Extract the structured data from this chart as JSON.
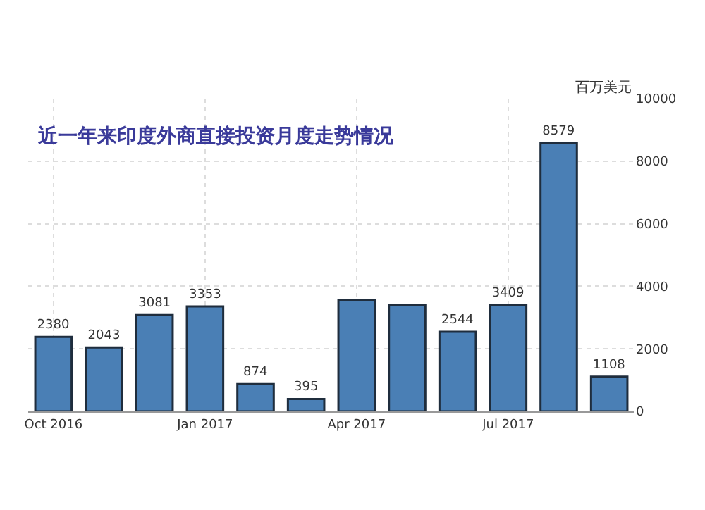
{
  "chart_data": {
    "type": "bar",
    "title": "近一年来印度外商直接投资月度走势情况",
    "ylabel": "百万美元",
    "categories": [
      "Oct 2016",
      null,
      null,
      "Jan 2017",
      null,
      null,
      "Apr 2017",
      null,
      null,
      "Jul 2017",
      null,
      null
    ],
    "values": [
      2380,
      2043,
      3081,
      3353,
      874,
      395,
      3550,
      3400,
      2544,
      3409,
      8579,
      1108
    ],
    "value_labels": [
      "2380",
      "2043",
      "3081",
      "3353",
      "874",
      "395",
      null,
      null,
      "2544",
      "3409",
      "8579",
      "1108"
    ],
    "color": "#4a7fb5",
    "ylim": [
      0,
      10000
    ],
    "yticks": [
      0,
      2000,
      4000,
      6000,
      8000,
      10000
    ],
    "grid": true,
    "legend": false
  }
}
